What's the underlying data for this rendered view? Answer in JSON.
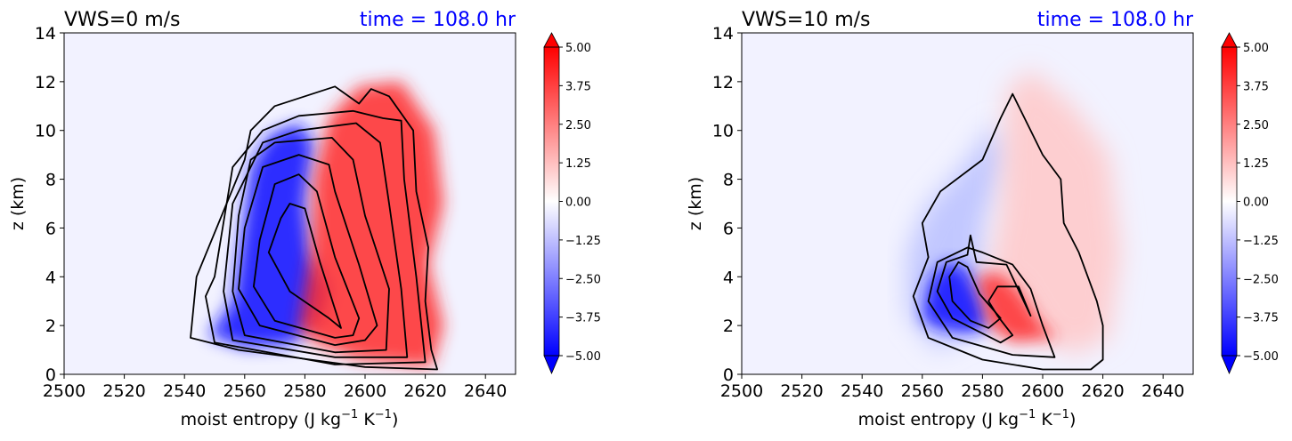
{
  "colors": {
    "negative": "#0000ff",
    "positive": "#ff0000",
    "neutral": "#ffffff",
    "time_text": "#0000ff",
    "contour": "#000000"
  },
  "chart_data": [
    {
      "type": "contour",
      "title_left": "VWS=0 m/s",
      "title_right": "time = 108.0 hr",
      "xlabel": "moist entropy (J kg",
      "xlabel_unit_tail": "K",
      "xlabel_close": ")",
      "ylabel": "z (km)",
      "xlim": [
        2500,
        2650
      ],
      "ylim": [
        0,
        14
      ],
      "xticks": [
        "2500",
        "2520",
        "2540",
        "2560",
        "2580",
        "2600",
        "2620",
        "2640"
      ],
      "yticks": [
        "0",
        "2",
        "4",
        "6",
        "8",
        "10",
        "12",
        "14"
      ],
      "colorbar": {
        "range": [
          -5,
          5
        ],
        "ticks": [
          "−5.00",
          "−3.75",
          "−2.50",
          "−1.25",
          "0.00",
          "1.25",
          "2.50",
          "3.75",
          "5.00"
        ]
      },
      "blue_region": [
        [
          2548,
          1.6
        ],
        [
          2556,
          3
        ],
        [
          2562,
          8.5
        ],
        [
          2568,
          9.8
        ],
        [
          2578,
          10.3
        ],
        [
          2583,
          9.5
        ],
        [
          2580,
          7
        ],
        [
          2582,
          5
        ],
        [
          2588,
          3.5
        ],
        [
          2585,
          2.2
        ],
        [
          2575,
          1.2
        ],
        [
          2560,
          1.1
        ]
      ],
      "red_region": [
        [
          2578,
          1.8
        ],
        [
          2582,
          5
        ],
        [
          2583,
          8
        ],
        [
          2588,
          10.5
        ],
        [
          2598,
          11.8
        ],
        [
          2612,
          12
        ],
        [
          2623,
          10
        ],
        [
          2626,
          7
        ],
        [
          2621,
          4.5
        ],
        [
          2626,
          2
        ],
        [
          2622,
          0.3
        ],
        [
          2598,
          0.6
        ],
        [
          2585,
          1.2
        ]
      ],
      "contours": [
        [
          [
            2572,
            6.4
          ],
          [
            2568,
            5
          ],
          [
            2575,
            3.4
          ],
          [
            2588,
            2.3
          ],
          [
            2592,
            1.9
          ],
          [
            2585,
            4.6
          ],
          [
            2580,
            6.8
          ],
          [
            2575,
            7
          ]
        ],
        [
          [
            2565,
            5.5
          ],
          [
            2563,
            3.6
          ],
          [
            2570,
            2.2
          ],
          [
            2590,
            1.5
          ],
          [
            2596,
            1.6
          ],
          [
            2598,
            2.3
          ],
          [
            2590,
            4.8
          ],
          [
            2584,
            7.5
          ],
          [
            2578,
            8.2
          ],
          [
            2570,
            7.8
          ]
        ],
        [
          [
            2560,
            6
          ],
          [
            2558,
            3.5
          ],
          [
            2565,
            2
          ],
          [
            2590,
            1.2
          ],
          [
            2600,
            1.4
          ],
          [
            2604,
            2
          ],
          [
            2598,
            4.5
          ],
          [
            2590,
            7.5
          ],
          [
            2588,
            8.6
          ],
          [
            2578,
            9
          ],
          [
            2566,
            8.5
          ]
        ],
        [
          [
            2558,
            6.5
          ],
          [
            2556,
            3.4
          ],
          [
            2560,
            1.6
          ],
          [
            2590,
            0.9
          ],
          [
            2607,
            1
          ],
          [
            2608,
            3.5
          ],
          [
            2600,
            6.5
          ],
          [
            2596,
            8.8
          ],
          [
            2589,
            9.7
          ],
          [
            2570,
            9.5
          ],
          [
            2562,
            8.8
          ]
        ],
        [
          [
            2556,
            7
          ],
          [
            2553,
            3.4
          ],
          [
            2556,
            1.4
          ],
          [
            2590,
            0.7
          ],
          [
            2614,
            0.7
          ],
          [
            2612,
            3.5
          ],
          [
            2608,
            7
          ],
          [
            2605,
            9.5
          ],
          [
            2597,
            10.3
          ],
          [
            2578,
            10
          ],
          [
            2566,
            9.5
          ]
        ],
        [
          [
            2556,
            8.5
          ],
          [
            2550,
            4
          ],
          [
            2547,
            3.2
          ],
          [
            2550,
            1.3
          ],
          [
            2590,
            0.4
          ],
          [
            2620,
            0.5
          ],
          [
            2617,
            4
          ],
          [
            2613,
            8
          ],
          [
            2612,
            10.4
          ],
          [
            2606,
            10.5
          ],
          [
            2596,
            10.8
          ],
          [
            2578,
            10.6
          ],
          [
            2566,
            10
          ]
        ],
        [
          [
            2560,
            8.8
          ],
          [
            2544,
            4
          ],
          [
            2542,
            1.5
          ],
          [
            2558,
            1
          ],
          [
            2600,
            0.3
          ],
          [
            2624,
            0.2
          ],
          [
            2622,
            1
          ],
          [
            2620,
            3
          ],
          [
            2621,
            5.2
          ],
          [
            2617,
            7.5
          ],
          [
            2616,
            10
          ],
          [
            2608,
            11.4
          ],
          [
            2602,
            11.7
          ],
          [
            2598,
            11.1
          ],
          [
            2590,
            11.8
          ],
          [
            2570,
            11
          ],
          [
            2562,
            10
          ]
        ]
      ]
    },
    {
      "type": "contour",
      "title_left": "VWS=10 m/s",
      "title_right": "time = 108.0 hr",
      "xlabel": "moist entropy (J kg",
      "xlabel_unit_tail": "K",
      "xlabel_close": ")",
      "ylabel": "z (km)",
      "xlim": [
        2500,
        2650
      ],
      "ylim": [
        0,
        14
      ],
      "xticks": [
        "2500",
        "2520",
        "2540",
        "2560",
        "2580",
        "2600",
        "2620",
        "2640"
      ],
      "yticks": [
        "0",
        "2",
        "4",
        "6",
        "8",
        "10",
        "12",
        "14"
      ],
      "colorbar": {
        "range": [
          -5,
          5
        ],
        "ticks": [
          "−5.00",
          "−3.75",
          "−2.50",
          "−1.25",
          "0.00",
          "1.25",
          "2.50",
          "3.75",
          "5.00"
        ]
      },
      "blue_region": [
        [
          2560,
          2.3
        ],
        [
          2562,
          3.8
        ],
        [
          2568,
          4.6
        ],
        [
          2574,
          4.4
        ],
        [
          2580,
          3
        ],
        [
          2582,
          1.9
        ],
        [
          2575,
          1.7
        ],
        [
          2565,
          1.9
        ]
      ],
      "light_blue_region": [
        [
          2555,
          2.5
        ],
        [
          2555,
          5
        ],
        [
          2561,
          6.8
        ],
        [
          2574,
          8.6
        ],
        [
          2584,
          10.3
        ],
        [
          2588,
          9
        ],
        [
          2580,
          6
        ],
        [
          2580,
          2
        ],
        [
          2565,
          1
        ]
      ],
      "red_region": [
        [
          2578,
          4
        ],
        [
          2585,
          4.2
        ],
        [
          2592,
          3.5
        ],
        [
          2600,
          2
        ],
        [
          2605,
          1.5
        ],
        [
          2590,
          1.3
        ],
        [
          2582,
          2
        ],
        [
          2580,
          3
        ]
      ],
      "light_red_region": [
        [
          2582,
          4
        ],
        [
          2586,
          6.5
        ],
        [
          2588,
          11.6
        ],
        [
          2596,
          12.5
        ],
        [
          2610,
          11
        ],
        [
          2622,
          9
        ],
        [
          2626,
          5
        ],
        [
          2622,
          1.5
        ],
        [
          2610,
          0.8
        ],
        [
          2600,
          1.5
        ],
        [
          2590,
          3.5
        ]
      ],
      "contours": [
        [
          [
            2572,
            4.6
          ],
          [
            2575,
            4.4
          ],
          [
            2579,
            3.3
          ],
          [
            2586,
            2.3
          ],
          [
            2582,
            1.9
          ],
          [
            2576,
            2.2
          ],
          [
            2570,
            3
          ],
          [
            2569,
            4
          ]
        ],
        [
          [
            2568,
            4.6
          ],
          [
            2565,
            3.4
          ],
          [
            2570,
            2.3
          ],
          [
            2586,
            1.3
          ],
          [
            2590,
            1.6
          ],
          [
            2585,
            2.4
          ],
          [
            2582,
            3
          ],
          [
            2585,
            3.6
          ],
          [
            2592,
            3.6
          ],
          [
            2596,
            2.4
          ],
          [
            2588,
            4.5
          ],
          [
            2578,
            4.6
          ],
          [
            2576,
            5.7
          ],
          [
            2575,
            4.9
          ]
        ],
        [
          [
            2565,
            4.6
          ],
          [
            2562,
            3
          ],
          [
            2570,
            1.5
          ],
          [
            2590,
            0.8
          ],
          [
            2604,
            0.7
          ],
          [
            2600,
            2
          ],
          [
            2596,
            3.5
          ],
          [
            2590,
            4.5
          ],
          [
            2580,
            5
          ],
          [
            2575,
            5.2
          ]
        ],
        [
          [
            2560,
            6.2
          ],
          [
            2562,
            4.8
          ],
          [
            2557,
            3.2
          ],
          [
            2562,
            1.5
          ],
          [
            2580,
            0.6
          ],
          [
            2600,
            0.2
          ],
          [
            2616,
            0.2
          ],
          [
            2620,
            0.6
          ],
          [
            2620,
            2
          ],
          [
            2618,
            3
          ],
          [
            2612,
            5
          ],
          [
            2607,
            6.2
          ],
          [
            2606,
            8
          ],
          [
            2600,
            9
          ],
          [
            2594,
            10.5
          ],
          [
            2590,
            11.5
          ],
          [
            2586,
            10.5
          ],
          [
            2580,
            8.8
          ],
          [
            2566,
            7.5
          ]
        ]
      ]
    }
  ]
}
